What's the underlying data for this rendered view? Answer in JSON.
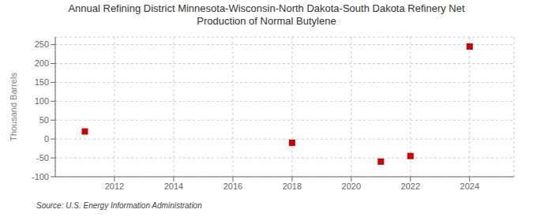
{
  "chart_data": {
    "type": "scatter",
    "title": "Annual Refining District Minnesota-Wisconsin-North Dakota-South Dakota Refinery Net\nProduction of Normal Butylene",
    "ylabel": "Thousand Barrels",
    "annotations": [
      "Source: U.S. Energy Information Administration"
    ],
    "x": [
      2011,
      2018,
      2021,
      2022,
      2024
    ],
    "values": [
      20,
      -10,
      -60,
      -45,
      245
    ],
    "color": "#cc0000",
    "marker": "square",
    "xlim": [
      2010.0,
      2025.5
    ],
    "ylim": [
      -100,
      270
    ],
    "xticks": [
      2012,
      2014,
      2016,
      2018,
      2020,
      2022,
      2024
    ],
    "yticks": [
      -100,
      -50,
      0,
      50,
      100,
      150,
      200,
      250
    ],
    "grid": true
  }
}
